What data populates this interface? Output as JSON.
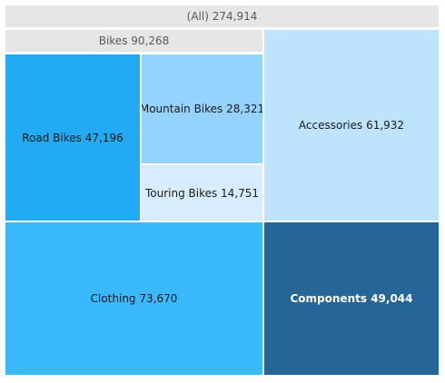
{
  "chart_data": {
    "type": "treemap",
    "root": {
      "label": "(All)",
      "value": 274914,
      "value_text": "274,914",
      "color": "#e6e6e6"
    },
    "groups": [
      {
        "label": "Bikes",
        "value": 90268,
        "value_text": "90,268",
        "color": "#e6e6e6",
        "children": [
          {
            "label": "Road Bikes",
            "value": 47196,
            "value_text": "47,196",
            "color": "#22aaf5",
            "text_color": "#1a1a1a"
          },
          {
            "label": "Mountain Bikes",
            "value": 28321,
            "value_text": "28,321",
            "color": "#93d3fd",
            "text_color": "#1a1a1a"
          },
          {
            "label": "Touring Bikes",
            "value": 14751,
            "value_text": "14,751",
            "color": "#d7edfd",
            "text_color": "#1a1a1a"
          }
        ]
      }
    ],
    "categories": [
      {
        "label": "Accessories",
        "value": 61932,
        "value_text": "61,932",
        "color": "#bde3fd",
        "text_color": "#1a1a1a"
      },
      {
        "label": "Clothing",
        "value": 73670,
        "value_text": "73,670",
        "color": "#3bb9fd",
        "text_color": "#1a1a1a"
      },
      {
        "label": "Components",
        "value": 49044,
        "value_text": "49,044",
        "color": "#266597",
        "text_color": "#ffffff"
      }
    ]
  }
}
